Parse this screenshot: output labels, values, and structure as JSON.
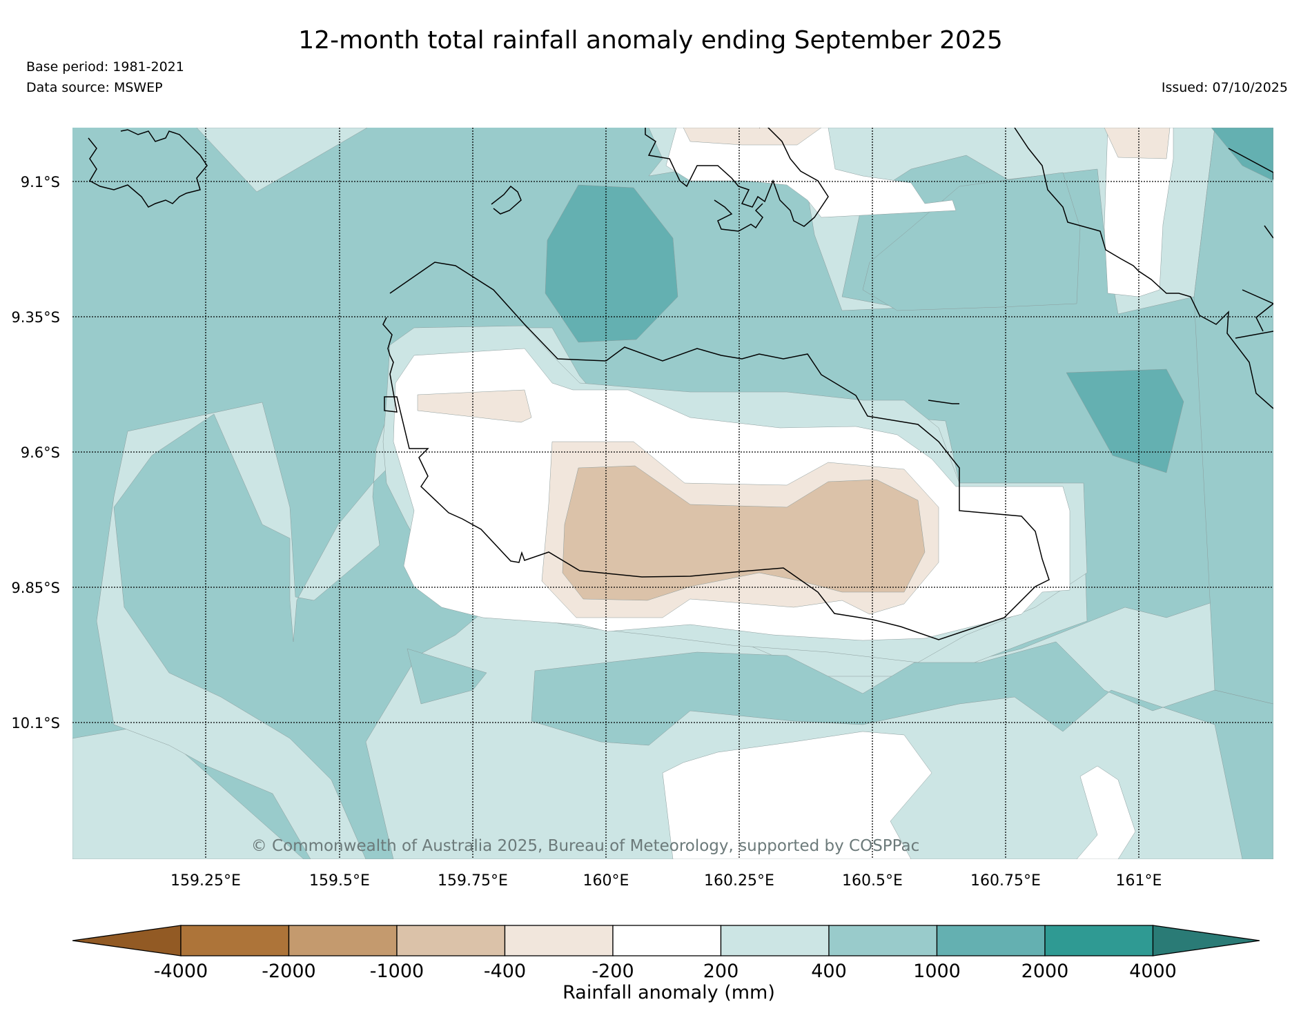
{
  "header": {
    "title": "12-month total rainfall anomaly ending September 2025",
    "base_period": "Base period: 1981-2021",
    "data_source": "Data source: MSWEP",
    "issued": "Issued: 07/10/2025"
  },
  "map": {
    "lat_labels": [
      "9.1°S",
      "9.35°S",
      "9.6°S",
      "9.85°S",
      "10.1°S"
    ],
    "lon_labels": [
      "159.25°E",
      "159.5°E",
      "159.75°E",
      "160°E",
      "160.25°E",
      "160.5°E",
      "160.75°E",
      "161°E"
    ],
    "copyright": "© Commonwealth of Australia 2025, Bureau of Meteorology, supported by COSPPac",
    "colors": {
      "ocean_400_1000": "#99cbcb",
      "band_200_400": "#cce5e4",
      "neutral": "#ffffff",
      "neg_200_400": "#f1e6dc",
      "neg_400_1000": "#dbc2a9",
      "pos_1000_2000": "#64b0b1",
      "coast": "#000000"
    }
  },
  "legend": {
    "title": "Rainfall anomaly (mm)",
    "ticks": [
      "-4000",
      "-2000",
      "-1000",
      "-400",
      "-200",
      "200",
      "400",
      "1000",
      "2000",
      "4000"
    ],
    "colors": [
      "#925a24",
      "#ad7439",
      "#c49a6e",
      "#dbc2a9",
      "#f1e6dc",
      "#ffffff",
      "#cce5e4",
      "#99cbcb",
      "#64b0b1",
      "#2f9a93",
      "#2a7b76"
    ]
  }
}
